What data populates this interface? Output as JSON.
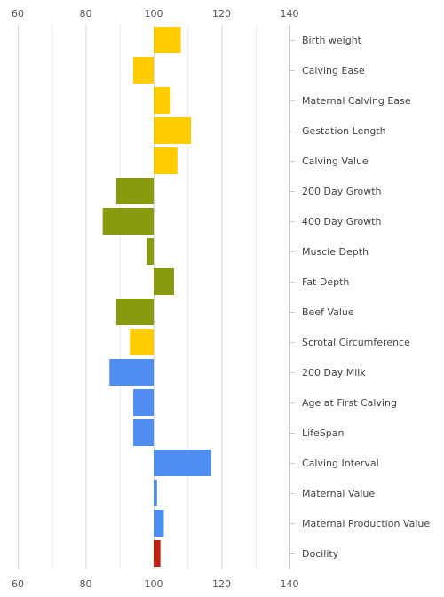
{
  "chart_data": {
    "type": "bar",
    "orientation": "horizontal",
    "title": "",
    "xlabel": "",
    "ylabel": "",
    "xlim": [
      60,
      140
    ],
    "xticks": [
      60,
      80,
      100,
      120,
      140
    ],
    "baseline": 100,
    "grid": true,
    "legend": "none",
    "categories": [
      "Birth weight",
      "Calving Ease",
      "Maternal Calving Ease",
      "Gestation Length",
      "Calving Value",
      "200 Day Growth",
      "400 Day Growth",
      "Muscle Depth",
      "Fat Depth",
      "Beef Value",
      "Scrotal Circumference",
      "200 Day Milk",
      "Age at First Calving",
      "LifeSpan",
      "Calving Interval",
      "Maternal Value",
      "Maternal Production Value",
      "Docility"
    ],
    "values": [
      108,
      94,
      105,
      111,
      107,
      89,
      85,
      98,
      106,
      89,
      93,
      87,
      94,
      94,
      117,
      101,
      103,
      102
    ],
    "colors": [
      "#ffcc00",
      "#ffcc00",
      "#ffcc00",
      "#ffcc00",
      "#ffcc00",
      "#8a9a0f",
      "#8a9a0f",
      "#8a9a0f",
      "#8a9a0f",
      "#8a9a0f",
      "#ffcc00",
      "#4d8ef0",
      "#4d8ef0",
      "#4d8ef0",
      "#4d8ef0",
      "#4d8ef0",
      "#4d8ef0",
      "#c0200f"
    ]
  }
}
